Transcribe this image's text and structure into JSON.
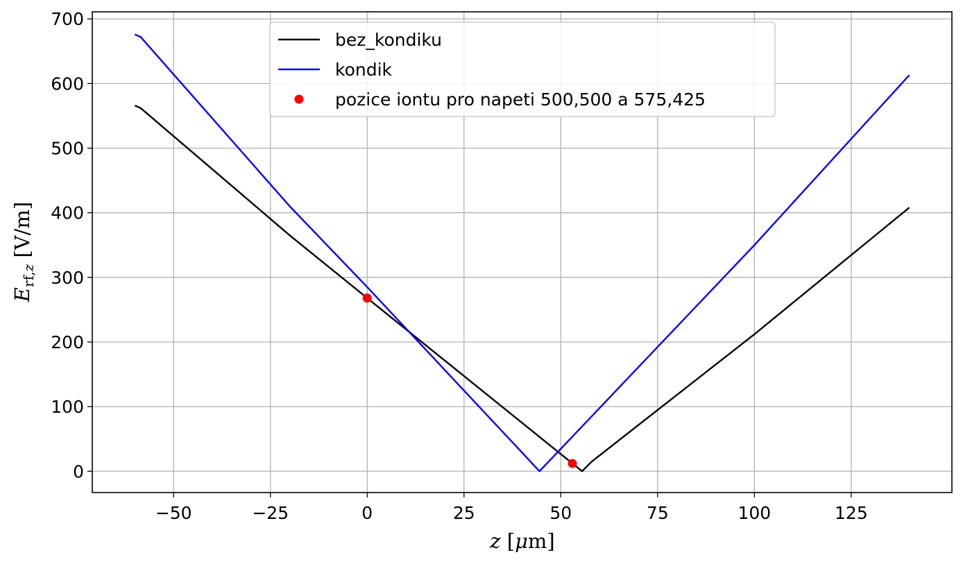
{
  "chart_data": {
    "type": "line",
    "xlabel": "z [μm]",
    "ylabel": "E_rf,z [V/m]",
    "xlim": [
      -71,
      151
    ],
    "ylim": [
      -33,
      711
    ],
    "xticks": [
      -50,
      -25,
      0,
      25,
      50,
      75,
      100,
      125
    ],
    "yticks": [
      0,
      100,
      200,
      300,
      400,
      500,
      600,
      700
    ],
    "grid": true,
    "legend_position": "top-center",
    "series": [
      {
        "name": "bez_kondiku",
        "color": "#000000",
        "style": "line",
        "x": [
          -60,
          -58.5,
          -20,
          0,
          55.5,
          58,
          100,
          140
        ],
        "y": [
          566,
          562,
          365,
          268,
          0,
          15,
          212,
          408
        ]
      },
      {
        "name": "kondik",
        "color": "#0000ff",
        "style": "line",
        "x": [
          -60,
          -58.5,
          -20,
          0,
          44.5,
          100,
          140
        ],
        "y": [
          676,
          672,
          410,
          285,
          0,
          350,
          613
        ]
      },
      {
        "name": "pozice iontu pro napeti 500,500 a 575,425",
        "color": "#ff0000",
        "style": "markers",
        "x": [
          0,
          53
        ],
        "y": [
          268,
          12
        ]
      }
    ]
  }
}
